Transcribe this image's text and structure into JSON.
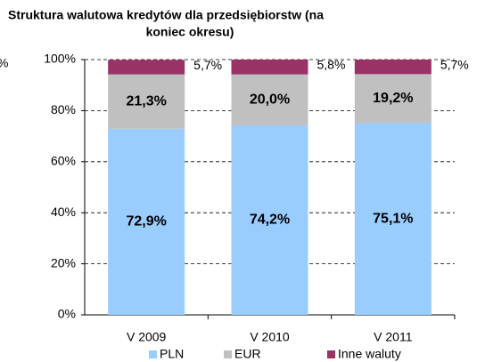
{
  "chart_data": {
    "type": "stacked_bar",
    "title": [
      "Struktura walutowa kredytów dla przedsiębiorstw (na",
      "koniec okresu)"
    ],
    "annotation": "%",
    "categories": [
      "V 2009",
      "V 2010",
      "V 2011"
    ],
    "series": [
      {
        "name": "PLN",
        "color": "#99ccff",
        "values": [
          72.9,
          74.2,
          75.1
        ],
        "value_labels": [
          "72,9%",
          "74,2%",
          "75,1%"
        ]
      },
      {
        "name": "EUR",
        "color": "#c0c0c0",
        "values": [
          21.3,
          20.0,
          19.2
        ],
        "value_labels": [
          "21,3%",
          "20,0%",
          "19,2%"
        ]
      },
      {
        "name": "Inne waluty",
        "color": "#993366",
        "values": [
          5.7,
          5.8,
          5.7
        ],
        "value_labels": [
          "5,7%",
          "5,8%",
          "5,7%"
        ]
      }
    ],
    "ylim": [
      0,
      100
    ],
    "yticks": [
      {
        "value": 0,
        "label": "0%"
      },
      {
        "value": 20,
        "label": "20%"
      },
      {
        "value": 40,
        "label": "40%"
      },
      {
        "value": 60,
        "label": "60%"
      },
      {
        "value": 80,
        "label": "80%"
      },
      {
        "value": 100,
        "label": "100%"
      }
    ],
    "grid": true,
    "legend": "bottom"
  }
}
